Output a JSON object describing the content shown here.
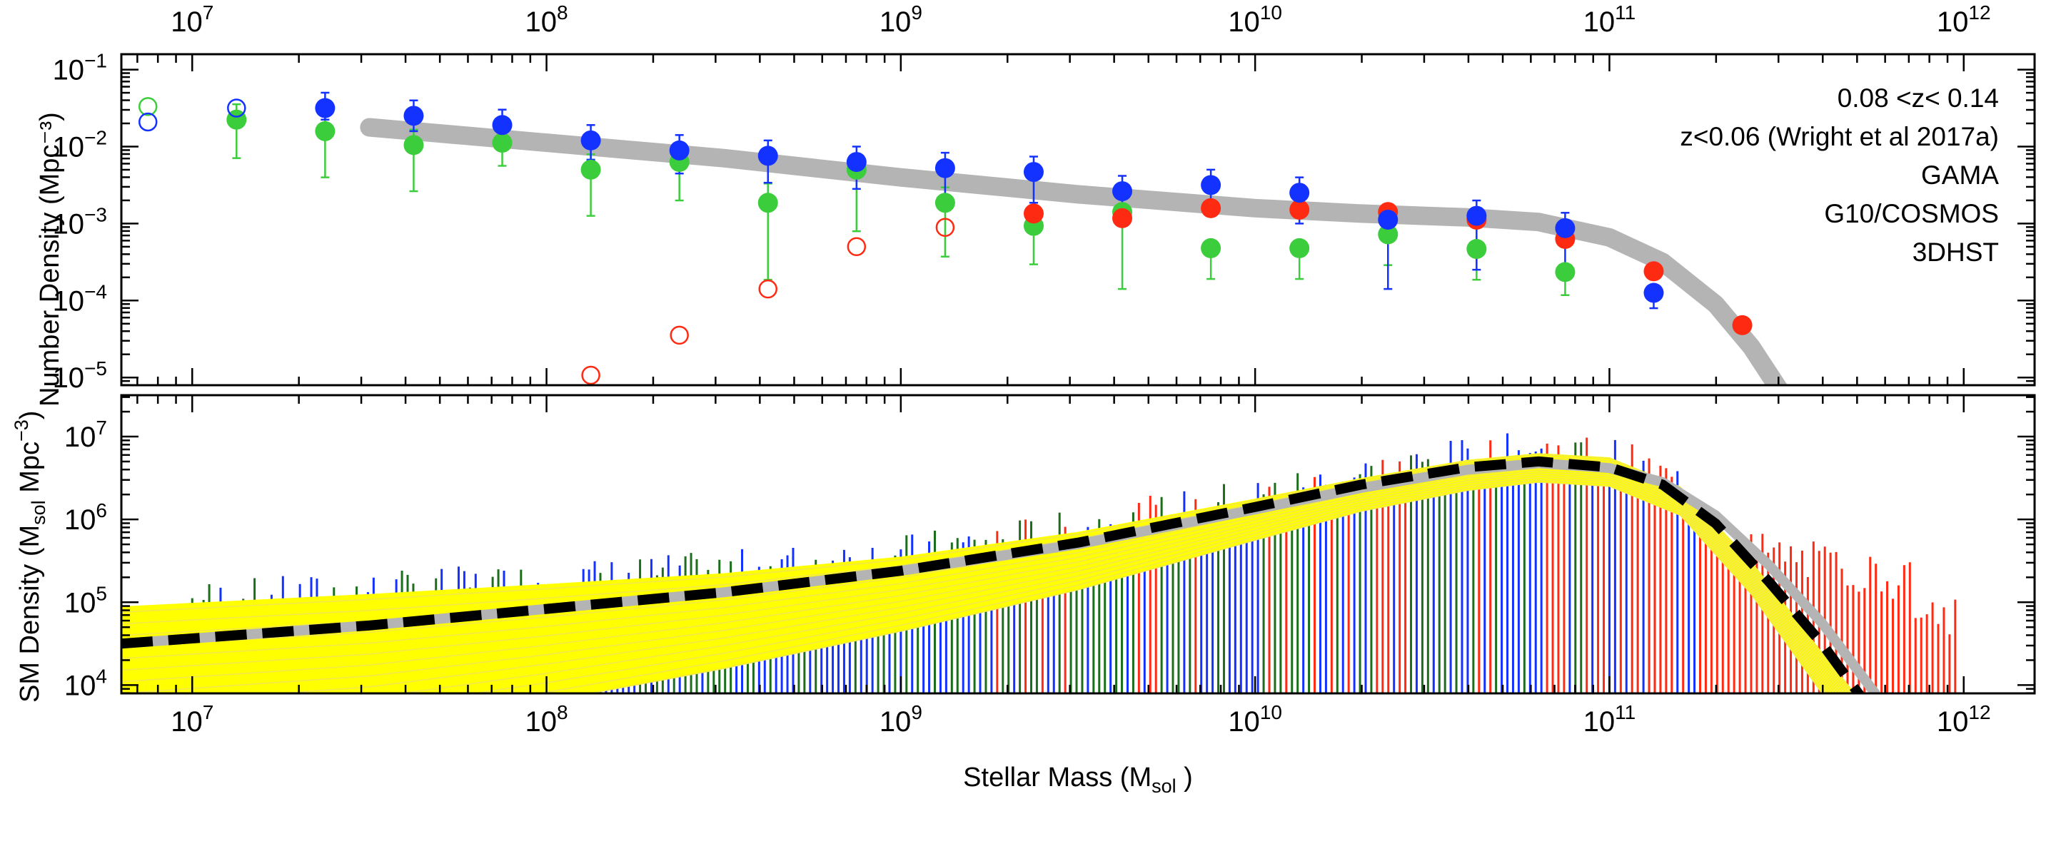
{
  "chart_data": [
    {
      "type": "scatter",
      "panel": "top",
      "ylabel": "Number Density (Mpc⁻³)",
      "x_scale": "log10",
      "xlim": [
        6.8,
        12.2
      ],
      "ylim": [
        -5.1,
        -0.8
      ],
      "x_ticks": [
        {
          "value": 7,
          "base": "10",
          "exp": "7"
        },
        {
          "value": 8,
          "base": "10",
          "exp": "8"
        },
        {
          "value": 9,
          "base": "10",
          "exp": "9"
        },
        {
          "value": 10,
          "base": "10",
          "exp": "10"
        },
        {
          "value": 11,
          "base": "10",
          "exp": "11"
        },
        {
          "value": 12,
          "base": "10",
          "exp": "12"
        }
      ],
      "y_ticks": [
        {
          "value": -1,
          "base": "10",
          "exp": "−1"
        },
        {
          "value": -2,
          "base": "10",
          "exp": "−2"
        },
        {
          "value": -3,
          "base": "10",
          "exp": "−3"
        },
        {
          "value": -4,
          "base": "10",
          "exp": "−4"
        },
        {
          "value": -5,
          "base": "10",
          "exp": "−5"
        }
      ],
      "annotation": "0.08 <z< 0.14",
      "legend": {
        "position": "top-right",
        "entries": [
          {
            "label": "z<0.06 (Wright et al 2017a)",
            "color": "#b4b4b4"
          },
          {
            "label": "GAMA",
            "color": "#ff2a12"
          },
          {
            "label": "G10/COSMOS",
            "color": "#1432ff"
          },
          {
            "label": "3DHST",
            "color": "#3ccd3c"
          }
        ]
      },
      "reference_curve": {
        "name": "z<0.06 (Wright et al 2017a)",
        "color": "#b4b4b4",
        "log_x": [
          7.5,
          8,
          8.5,
          9,
          9.5,
          10,
          10.3,
          10.6,
          10.8,
          11.0,
          11.15,
          11.3,
          11.4,
          11.5
        ],
        "log_y": [
          -1.75,
          -1.95,
          -2.15,
          -2.4,
          -2.62,
          -2.8,
          -2.87,
          -2.92,
          -2.98,
          -3.18,
          -3.5,
          -4.05,
          -4.6,
          -5.3
        ]
      },
      "series": [
        {
          "name": "GAMA",
          "color": "#ff2a12",
          "filled": {
            "log_x": [
              9.375,
              9.625,
              9.875,
              10.125,
              10.375,
              10.625,
              10.875,
              11.125,
              11.375
            ],
            "log_y": [
              -2.87,
              -2.93,
              -2.8,
              -2.82,
              -2.85,
              -2.95,
              -3.2,
              -3.62,
              -4.32
            ]
          },
          "open": {
            "log_x": [
              8.125,
              8.375,
              8.625,
              8.875,
              9.125
            ],
            "log_y": [
              -4.97,
              -4.45,
              -3.85,
              -3.3,
              -3.05
            ]
          }
        },
        {
          "name": "G10/COSMOS",
          "color": "#1432ff",
          "filled": {
            "log_x": [
              7.375,
              7.625,
              7.875,
              8.125,
              8.375,
              8.625,
              8.875,
              9.125,
              9.375,
              9.625,
              9.875,
              10.125,
              10.375,
              10.625,
              10.875,
              11.125
            ],
            "log_y": [
              -1.5,
              -1.6,
              -1.72,
              -1.92,
              -2.05,
              -2.12,
              -2.2,
              -2.28,
              -2.33,
              -2.58,
              -2.5,
              -2.6,
              -2.95,
              -2.9,
              -3.06,
              -3.9
            ],
            "err_lo": [
              0.15,
              0.2,
              0.2,
              0.25,
              0.3,
              0.35,
              0.35,
              0.35,
              0.4,
              0.4,
              0.4,
              0.4,
              0.9,
              0.7,
              0.6,
              0.2
            ],
            "err_hi": [
              0.2,
              0.2,
              0.2,
              0.2,
              0.2,
              0.2,
              0.2,
              0.2,
              0.2,
              0.2,
              0.2,
              0.2,
              0.2,
              0.2,
              0.2,
              0.1
            ]
          },
          "open": {
            "log_x": [
              6.875,
              7.125
            ],
            "log_y": [
              -1.68,
              -1.5
            ]
          }
        },
        {
          "name": "3DHST",
          "color": "#3ccd3c",
          "filled": {
            "log_x": [
              7.125,
              7.375,
              7.625,
              7.875,
              8.125,
              8.375,
              8.625,
              8.875,
              9.125,
              9.375,
              9.625,
              9.875,
              10.125,
              10.375,
              10.625,
              10.875
            ],
            "log_y": [
              -1.65,
              -1.8,
              -1.98,
              -1.95,
              -2.3,
              -2.2,
              -2.73,
              -2.3,
              -2.73,
              -3.03,
              -2.85,
              -3.32,
              -3.32,
              -3.14,
              -3.33,
              -3.63
            ],
            "err_lo": [
              0.5,
              0.6,
              0.6,
              0.3,
              0.6,
              0.5,
              1.0,
              0.8,
              0.7,
              0.5,
              1.0,
              0.4,
              0.4,
              0.4,
              0.4,
              0.3
            ],
            "err_hi": [
              0.2,
              0.2,
              0.2,
              0.15,
              0.2,
              0.2,
              0.25,
              0.2,
              0.2,
              0.15,
              0.2,
              0.1,
              0.1,
              0.1,
              0.1,
              0.1
            ]
          },
          "open": {
            "log_x": [
              6.875
            ],
            "log_y": [
              -1.48
            ]
          }
        }
      ]
    },
    {
      "type": "bar",
      "panel": "bottom",
      "xlabel": "Stellar Mass (M",
      "xlabel_sub": "sol",
      "xlabel_tail": " )",
      "ylabel_pre": "SM Density (M",
      "ylabel_sub": "sol",
      "ylabel_mid": " Mpc",
      "ylabel_sup": "−3",
      "ylabel_tail": ")",
      "x_scale": "log10",
      "xlim": [
        6.8,
        12.2
      ],
      "ylim": [
        3.9,
        7.5
      ],
      "x_ticks": [
        {
          "value": 7,
          "base": "10",
          "exp": "7"
        },
        {
          "value": 8,
          "base": "10",
          "exp": "8"
        },
        {
          "value": 9,
          "base": "10",
          "exp": "9"
        },
        {
          "value": 10,
          "base": "10",
          "exp": "10"
        },
        {
          "value": 11,
          "base": "10",
          "exp": "11"
        },
        {
          "value": 12,
          "base": "10",
          "exp": "12"
        }
      ],
      "y_ticks": [
        {
          "value": 4,
          "base": "10",
          "exp": "4"
        },
        {
          "value": 5,
          "base": "10",
          "exp": "5"
        },
        {
          "value": 6,
          "base": "10",
          "exp": "6"
        },
        {
          "value": 7,
          "base": "10",
          "exp": "7"
        }
      ],
      "envelope": {
        "name": "fit samples",
        "color": "#ffff00",
        "log_x": [
          6.8,
          7.5,
          8,
          8.5,
          9,
          9.5,
          10,
          10.3,
          10.6,
          10.8,
          11.0,
          11.2,
          11.4,
          11.6,
          11.75
        ],
        "upper": [
          4.95,
          5.1,
          5.22,
          5.35,
          5.55,
          5.85,
          6.25,
          6.5,
          6.72,
          6.8,
          6.75,
          6.4,
          5.5,
          4.4,
          3.6
        ],
        "lower": [
          3.2,
          3.45,
          3.8,
          4.2,
          4.65,
          5.15,
          5.75,
          6.1,
          6.35,
          6.45,
          6.4,
          6.05,
          5.1,
          3.9,
          3.2
        ]
      },
      "gray_curve": {
        "color": "#b4b4b4",
        "log_x": [
          6.8,
          7.5,
          8,
          8.5,
          9,
          9.5,
          10,
          10.3,
          10.6,
          10.8,
          11.0,
          11.15,
          11.3,
          11.45,
          11.6,
          11.75
        ],
        "log_y": [
          4.5,
          4.72,
          4.92,
          5.12,
          5.38,
          5.7,
          6.12,
          6.38,
          6.6,
          6.68,
          6.62,
          6.45,
          6.05,
          5.45,
          4.75,
          3.9
        ]
      },
      "best_fit": {
        "name": "best fit",
        "color": "#000000",
        "style": "dashed",
        "log_x": [
          6.8,
          7.5,
          8,
          8.5,
          9,
          9.5,
          10,
          10.3,
          10.6,
          10.8,
          11.0,
          11.15,
          11.3,
          11.45,
          11.6,
          11.72
        ],
        "log_y": [
          4.5,
          4.72,
          4.92,
          5.12,
          5.38,
          5.72,
          6.15,
          6.42,
          6.63,
          6.7,
          6.63,
          6.42,
          5.95,
          5.25,
          4.5,
          3.8
        ]
      }
    }
  ]
}
